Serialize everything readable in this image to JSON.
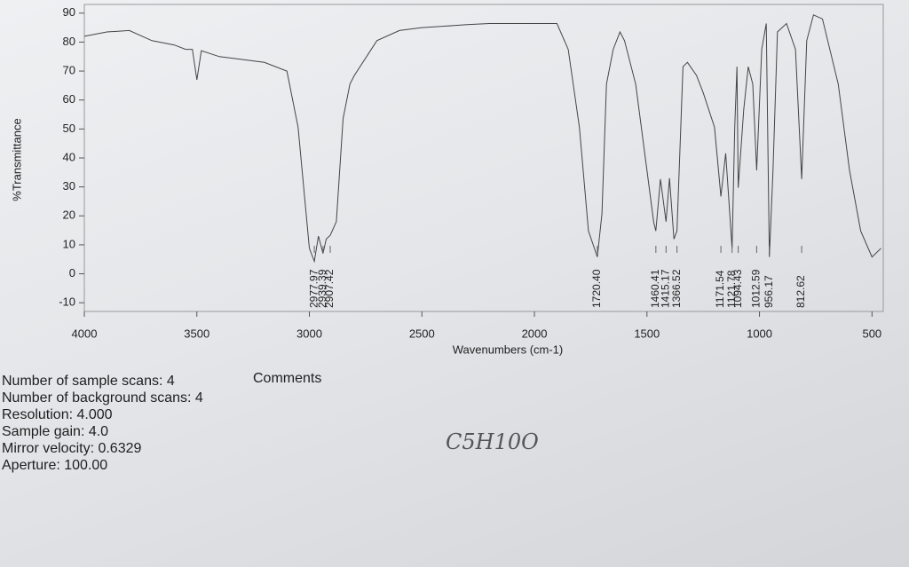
{
  "chart_data": {
    "type": "line",
    "y_label": "%Transmittance",
    "x_label": "Wavenumbers (cm-1)",
    "color": "#444444",
    "xlim": [
      4000,
      450
    ],
    "ylim": [
      -13,
      93
    ],
    "xticks": [
      4000,
      3500,
      3000,
      2500,
      2000,
      1500,
      1000,
      500
    ],
    "yticks": [
      -10,
      0,
      10,
      20,
      30,
      40,
      50,
      60,
      70,
      80,
      90
    ],
    "x": [
      4000,
      3900,
      3800,
      3700,
      3600,
      3550,
      3520,
      3500,
      3480,
      3400,
      3300,
      3200,
      3100,
      3050,
      3000,
      2977.97,
      2960,
      2939.39,
      2925,
      2907.42,
      2880,
      2850,
      2820,
      2800,
      2700,
      2600,
      2500,
      2400,
      2300,
      2200,
      2100,
      2000,
      1900,
      1850,
      1800,
      1760,
      1720.4,
      1700,
      1680,
      1650,
      1620,
      1600,
      1550,
      1500,
      1470,
      1460.41,
      1440,
      1415.17,
      1400,
      1380,
      1366.52,
      1340,
      1320,
      1280,
      1250,
      1200,
      1171.54,
      1150,
      1121.78,
      1110,
      1100,
      1094.43,
      1070,
      1050,
      1030,
      1012.59,
      990,
      970,
      956.17,
      940,
      920,
      880,
      840,
      812.62,
      790,
      760,
      720,
      650,
      600,
      550,
      500,
      460
    ],
    "values": [
      82,
      83.5,
      84,
      80.5,
      79,
      77.5,
      77.5,
      67,
      77,
      75,
      74,
      73,
      70,
      50.6,
      8.8,
      4.3,
      13,
      7,
      12,
      13.3,
      18,
      53.6,
      65.5,
      68.5,
      80.5,
      84,
      85,
      85.5,
      86,
      86.4,
      86.4,
      86.4,
      86.4,
      77.5,
      50.6,
      14.8,
      5.8,
      20.7,
      65.5,
      77.5,
      83.5,
      80.5,
      65.5,
      35.7,
      17.8,
      14.8,
      32.7,
      18,
      33,
      12,
      14.8,
      71.5,
      73,
      68.5,
      62.5,
      50.6,
      26.7,
      41.6,
      8.8,
      50.6,
      71.5,
      29.7,
      56.6,
      71.5,
      65.5,
      35.7,
      77.5,
      86.4,
      5.8,
      35.7,
      83.5,
      86.4,
      77.5,
      32.7,
      80.5,
      89.4,
      88,
      65.5,
      35.7,
      14.8,
      5.8,
      8.8
    ],
    "peaks": [
      {
        "value": 2977.97,
        "label": "2977.97"
      },
      {
        "value": 2939.39,
        "label": "2939.39"
      },
      {
        "value": 2907.42,
        "label": "2907.42"
      },
      {
        "value": 1720.4,
        "label": "1720.40"
      },
      {
        "value": 1460.41,
        "label": "1460.41"
      },
      {
        "value": 1415.17,
        "label": "1415.17"
      },
      {
        "value": 1366.52,
        "label": "1366.52"
      },
      {
        "value": 1171.54,
        "label": "1171.54"
      },
      {
        "value": 1121.78,
        "label": "1121.78"
      },
      {
        "value": 1094.43,
        "label": "1094.43"
      },
      {
        "value": 1012.59,
        "label": "1012.59"
      },
      {
        "value": 956.17,
        "label": "956.17"
      },
      {
        "value": 812.62,
        "label": "812.62"
      }
    ]
  },
  "info": [
    "Number of sample scans: 4",
    "Number of background scans: 4",
    "Resolution:  4.000",
    "Sample gain:  4.0",
    "Mirror velocity:  0.6329",
    "Aperture:  100.00"
  ],
  "comments_heading": "Comments",
  "handwriting": "C5H10O"
}
